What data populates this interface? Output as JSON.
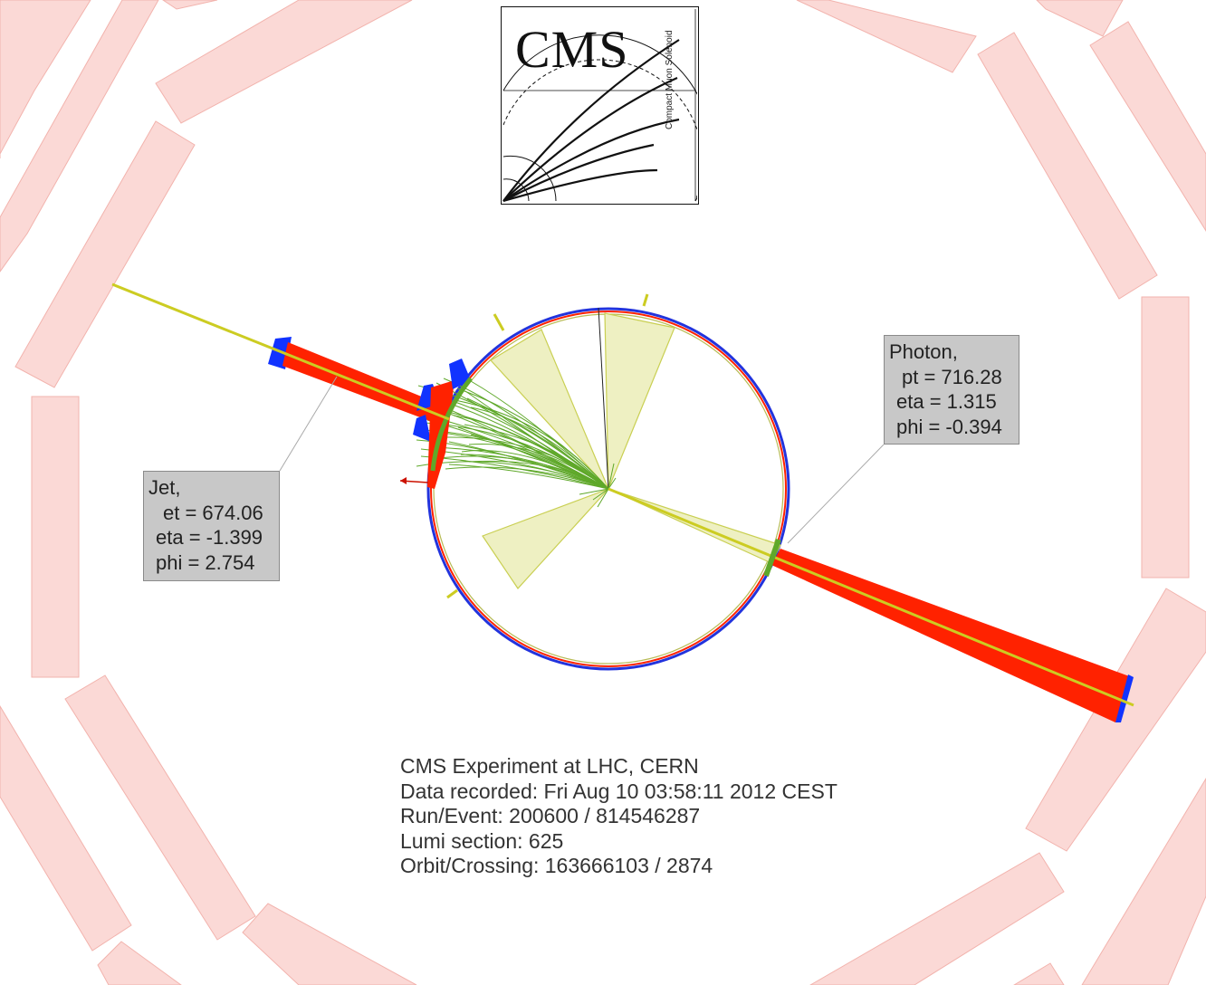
{
  "logo": {
    "title": "CMS",
    "subtitle": "Compact Muon Solenoid"
  },
  "jet_label": {
    "title": "Jet,",
    "et": "et = 674.06",
    "eta": "eta = -1.399",
    "phi": "phi = 2.754"
  },
  "photon_label": {
    "title": "Photon,",
    "pt": "pt = 716.28",
    "eta": "eta = 1.315",
    "phi": "phi = -0.394"
  },
  "event_info": {
    "experiment": "CMS Experiment at LHC, CERN",
    "data_recorded": "Data recorded: Fri Aug 10 03:58:11 2012 CEST",
    "run_event": "Run/Event: 200600 / 814546287",
    "lumi_section": "Lumi section: 625",
    "orbit_crossing": "Orbit/Crossing: 163666103 / 2874"
  },
  "colors": {
    "muon_chambers": "#fbd9d6",
    "muon_chamber_edge": "#f2b3ad",
    "ecal_deposit": "#ff2200",
    "hcal_deposit": "#1133ff",
    "jet_cone": "#eef0c2",
    "jet_cone_edge": "#c9cf52",
    "tracks": "#5fa82a",
    "photon_line": "#cccc22",
    "label_box": "#c8c8c8"
  }
}
